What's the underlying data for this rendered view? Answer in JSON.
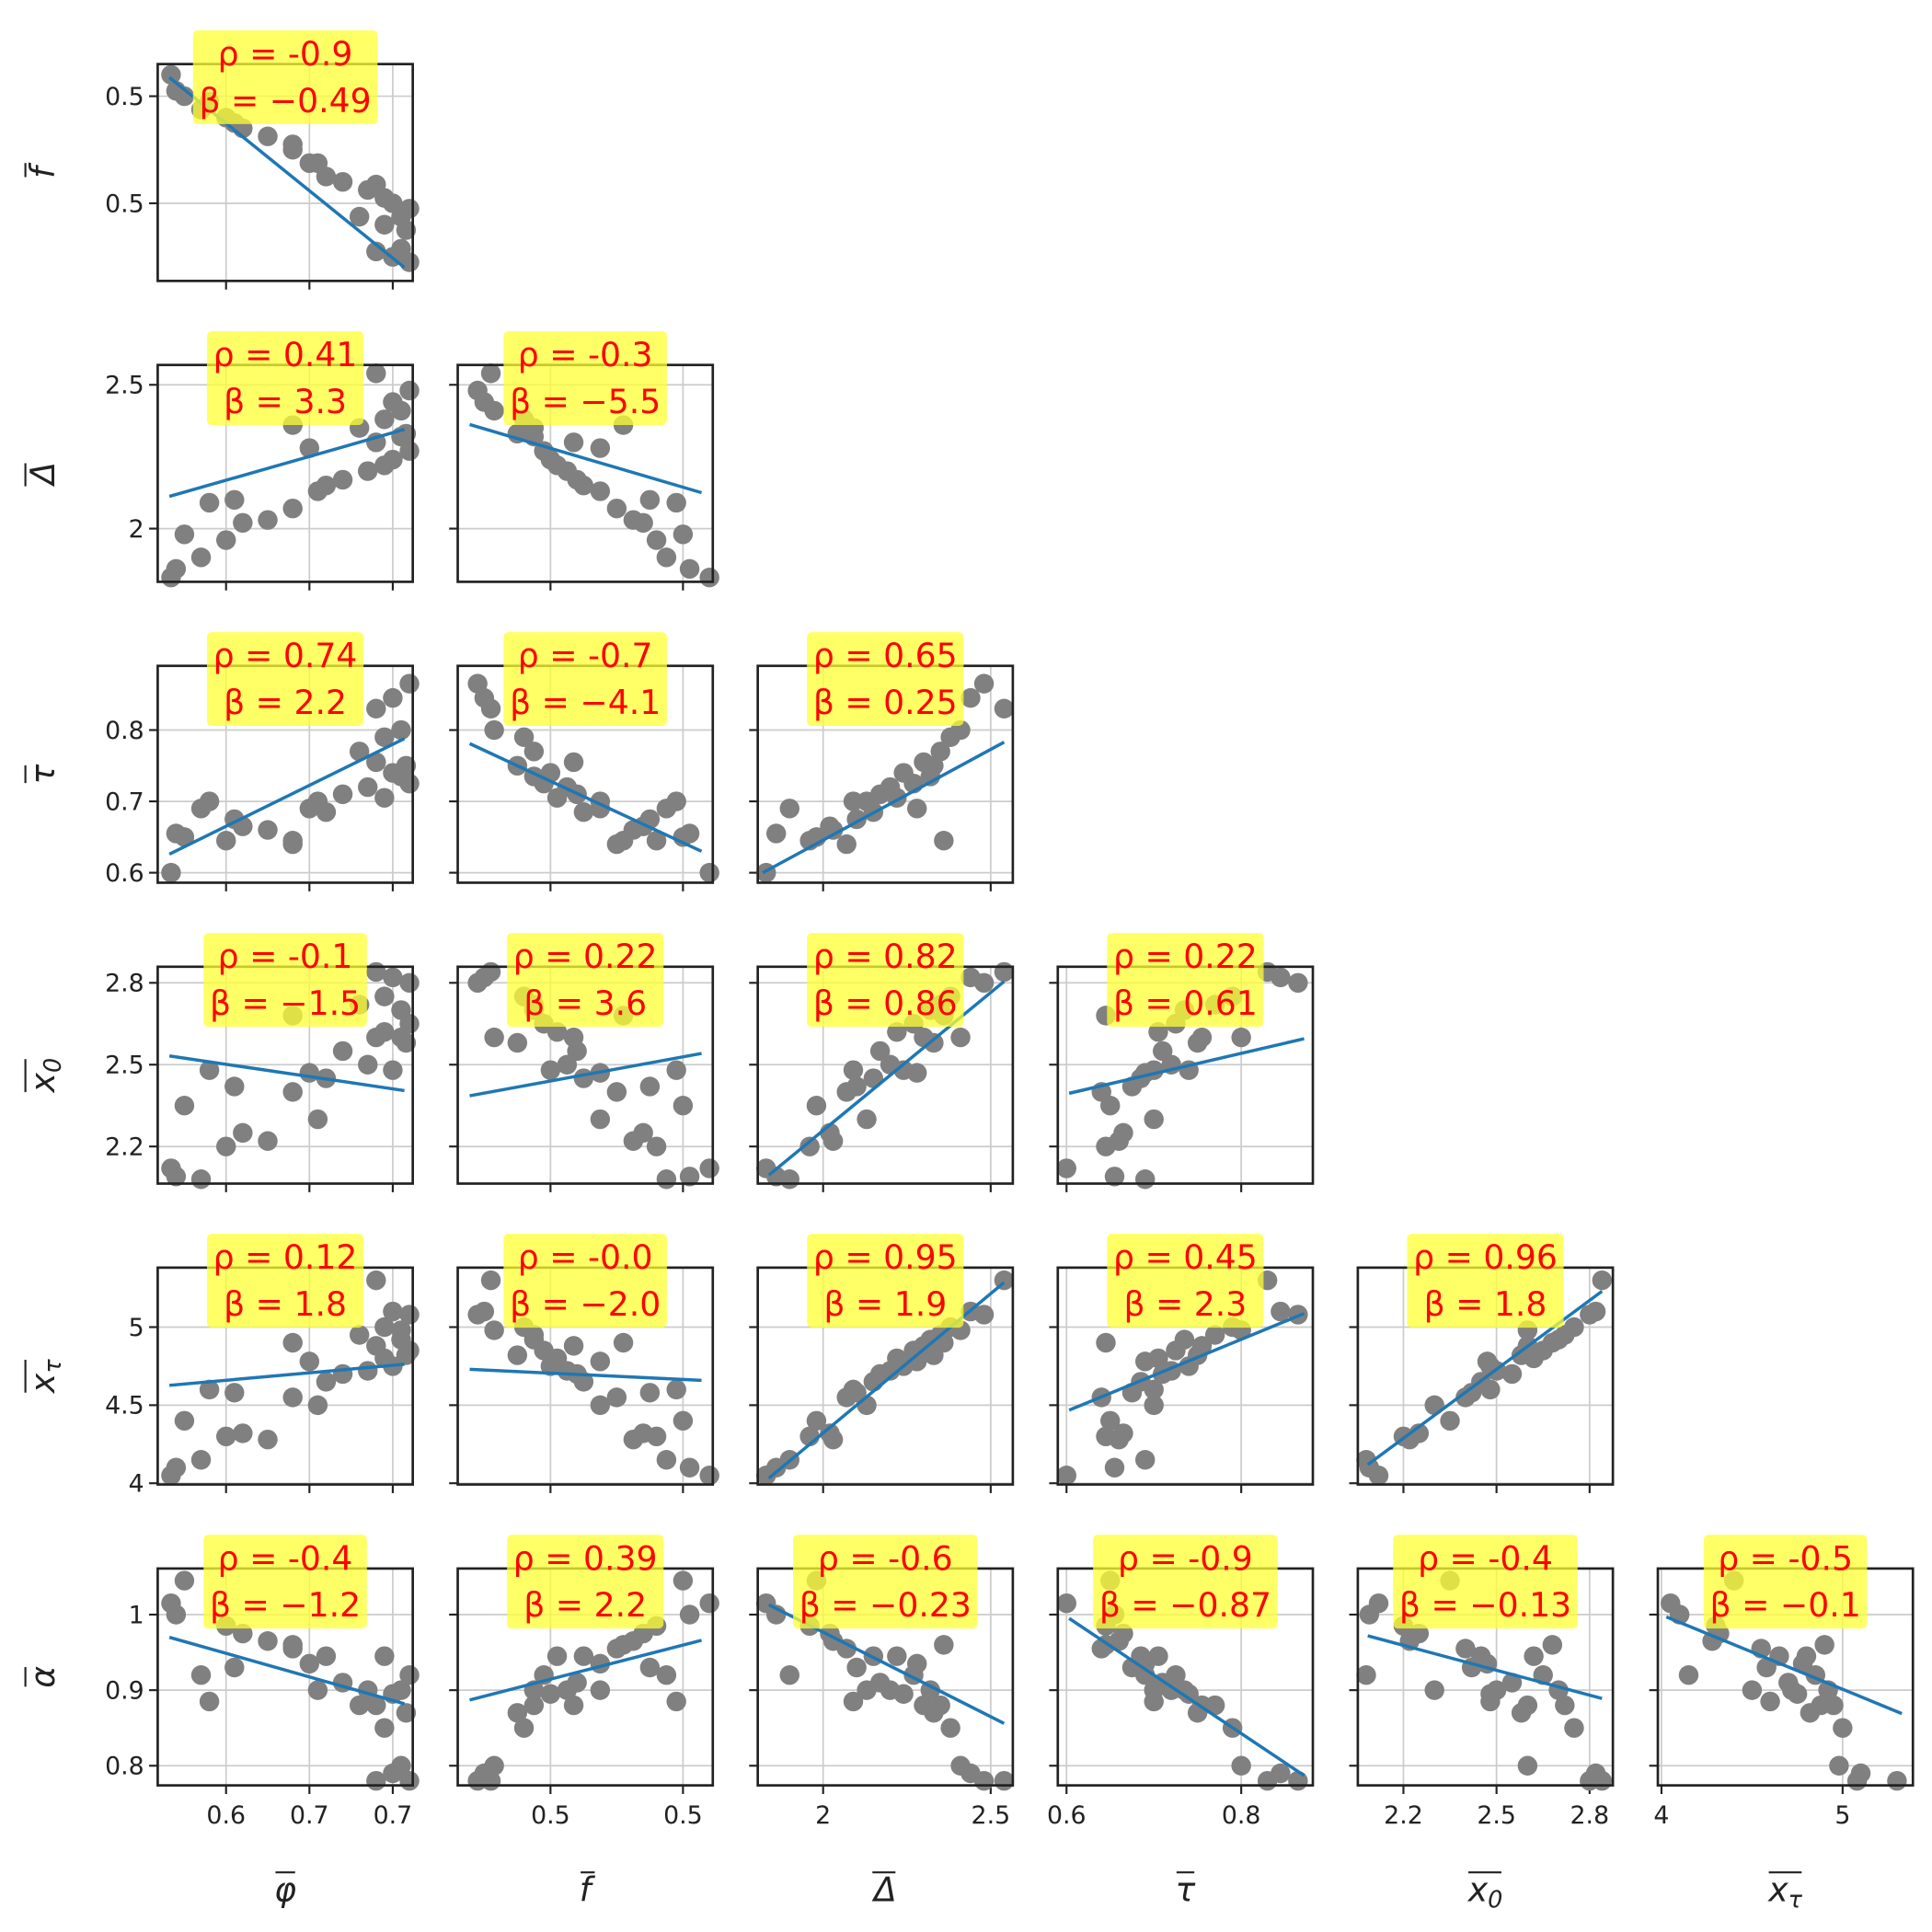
{
  "chart_data": {
    "type": "scatter",
    "grid": true,
    "point_color": "#808080",
    "line_color": "#1f77b4",
    "box_color": "#ffff33",
    "text_color": "#ff0000",
    "variables": [
      {
        "label": "φ",
        "xlim": [
          0.559,
          0.712
        ],
        "xticks": [
          0.6,
          {
            "value": 0.65,
            "label": "0.7"
          },
          0.7
        ],
        "values": [
          0.567,
          0.57,
          0.585,
          0.6,
          0.575,
          0.61,
          0.625,
          0.64,
          0.59,
          0.605,
          0.655,
          0.66,
          0.67,
          0.685,
          0.695,
          0.7,
          0.71,
          0.65,
          0.69,
          0.705,
          0.708,
          0.68,
          0.64,
          0.695,
          0.705,
          0.7,
          0.71,
          0.69
        ]
      },
      {
        "label": "f",
        "xlim": [
          0.452,
          0.529
        ],
        "ylim": [
          0.451,
          0.532
        ],
        "xticks": [
          {
            "value": 0.48,
            "label": "0.5"
          },
          {
            "value": 0.52,
            "label": "0.5"
          }
        ],
        "yticks": [
          {
            "value": 0.52,
            "label": "0.5"
          },
          {
            "value": 0.48,
            "label": "0.5"
          }
        ],
        "values": [
          0.528,
          0.522,
          0.515,
          0.512,
          0.52,
          0.508,
          0.505,
          0.5,
          0.518,
          0.51,
          0.495,
          0.49,
          0.488,
          0.485,
          0.482,
          0.48,
          0.478,
          0.495,
          0.487,
          0.475,
          0.47,
          0.475,
          0.502,
          0.472,
          0.463,
          0.46,
          0.458,
          0.462
        ]
      },
      {
        "label": "Δ",
        "xlim": [
          1.805,
          2.566
        ],
        "ylim": [
          1.815,
          2.569
        ],
        "xticks": [
          2.0,
          2.5
        ],
        "yticks": [
          2.0,
          2.5
        ],
        "values": [
          1.83,
          1.86,
          1.9,
          1.96,
          1.98,
          2.02,
          2.03,
          2.07,
          2.09,
          2.1,
          2.13,
          2.15,
          2.17,
          2.2,
          2.22,
          2.24,
          2.27,
          2.28,
          2.3,
          2.32,
          2.33,
          2.35,
          2.36,
          2.38,
          2.41,
          2.44,
          2.48,
          2.54
        ]
      },
      {
        "label": "τ",
        "xlim": [
          0.59,
          0.882
        ],
        "ylim": [
          0.586,
          0.89
        ],
        "xticks": [
          0.6,
          0.8
        ],
        "yticks": [
          0.6,
          0.7,
          0.8
        ],
        "values": [
          0.6,
          0.655,
          0.69,
          0.645,
          0.65,
          0.665,
          0.66,
          0.64,
          0.7,
          0.675,
          0.7,
          0.685,
          0.71,
          0.72,
          0.705,
          0.74,
          0.725,
          0.69,
          0.755,
          0.735,
          0.75,
          0.77,
          0.645,
          0.79,
          0.8,
          0.845,
          0.865,
          0.83
        ]
      },
      {
        "label": "x",
        "sub": "0",
        "xlim": [
          2.053,
          2.875
        ],
        "ylim": [
          2.064,
          2.859
        ],
        "xticks": [
          2.2,
          2.5,
          2.8
        ],
        "yticks": [
          2.2,
          2.5,
          2.8
        ],
        "values": [
          2.12,
          2.09,
          2.08,
          2.2,
          2.35,
          2.25,
          2.22,
          2.4,
          2.48,
          2.42,
          2.3,
          2.45,
          2.55,
          2.5,
          2.62,
          2.48,
          2.65,
          2.47,
          2.6,
          2.7,
          2.58,
          2.72,
          2.68,
          2.75,
          2.6,
          2.82,
          2.8,
          2.84
        ]
      },
      {
        "label": "x",
        "sub": "τ",
        "xlim": [
          3.98,
          5.388
        ],
        "ylim": [
          3.992,
          5.381
        ],
        "xticks": [
          4.0,
          5.0
        ],
        "yticks": [
          4.0,
          4.5,
          5.0
        ],
        "values": [
          4.05,
          4.1,
          4.15,
          4.3,
          4.4,
          4.32,
          4.28,
          4.55,
          4.6,
          4.58,
          4.5,
          4.65,
          4.7,
          4.72,
          4.8,
          4.75,
          4.85,
          4.78,
          4.88,
          4.92,
          4.82,
          4.95,
          4.9,
          5.0,
          4.98,
          5.1,
          5.08,
          5.3
        ]
      },
      {
        "label": "α",
        "ylim": [
          0.774,
          1.061
        ],
        "yticks": [
          0.8,
          0.9,
          1.0
        ],
        "values": [
          1.015,
          1.0,
          0.92,
          0.985,
          1.045,
          0.975,
          0.965,
          0.955,
          0.885,
          0.93,
          0.9,
          0.945,
          0.91,
          0.9,
          0.945,
          0.895,
          0.92,
          0.935,
          0.88,
          0.9,
          0.87,
          0.88,
          0.96,
          0.85,
          0.8,
          0.79,
          0.78,
          0.78
        ]
      }
    ],
    "rows": [
      [
        {
          "rho": "ρ = -0.9",
          "beta": "β = −0.49",
          "fit": {
            "x": [
              0.566,
              0.707
            ],
            "y": [
              0.527,
              0.456
            ]
          }
        }
      ],
      [
        {
          "rho": "ρ = 0.41",
          "beta": "β = 3.3",
          "fit": {
            "x": [
              0.566,
              0.707
            ],
            "y": [
              2.112,
              2.345
            ]
          }
        },
        {
          "rho": "ρ = -0.3",
          "beta": "β = −5.5",
          "fit": {
            "x": [
              0.4556,
              0.5256
            ],
            "y": [
              2.362,
              2.125
            ]
          }
        }
      ],
      [
        {
          "rho": "ρ = 0.74",
          "beta": "β = 2.2",
          "fit": {
            "x": [
              0.566,
              0.707
            ],
            "y": [
              0.626,
              0.788
            ]
          }
        },
        {
          "rho": "ρ = -0.7",
          "beta": "β = −4.1",
          "fit": {
            "x": [
              0.4556,
              0.5256
            ],
            "y": [
              0.781,
              0.63
            ]
          }
        },
        {
          "rho": "ρ = 0.65",
          "beta": "β = 0.25",
          "fit": {
            "x": [
              1.82,
              2.54
            ],
            "y": [
              0.6,
              0.783
            ]
          }
        }
      ],
      [
        {
          "rho": "ρ = -0.1",
          "beta": "β = −1.5",
          "fit": {
            "x": [
              0.566,
              0.707
            ],
            "y": [
              2.532,
              2.405
            ]
          }
        },
        {
          "rho": "ρ = 0.22",
          "beta": "β = 3.6",
          "fit": {
            "x": [
              0.4556,
              0.5256
            ],
            "y": [
              2.386,
              2.541
            ]
          }
        },
        {
          "rho": "ρ = 0.82",
          "beta": "β = 0.86",
          "fit": {
            "x": [
              1.838,
              2.54
            ],
            "y": [
              2.095,
              2.805
            ]
          }
        },
        {
          "rho": "ρ = 0.22",
          "beta": "β = 0.61",
          "fit": {
            "x": [
              0.603,
              0.872
            ],
            "y": [
              2.395,
              2.595
            ]
          }
        }
      ],
      [
        {
          "rho": "ρ = 0.12",
          "beta": "β = 1.8",
          "fit": {
            "x": [
              0.566,
              0.707
            ],
            "y": [
              4.627,
              4.762
            ]
          }
        },
        {
          "rho": "ρ = -0.0",
          "beta": "β = −2.0",
          "fit": {
            "x": [
              0.4556,
              0.5256
            ],
            "y": [
              4.73,
              4.659
            ]
          }
        },
        {
          "rho": "ρ = 0.95",
          "beta": "β = 1.9",
          "fit": {
            "x": [
              1.838,
              2.54
            ],
            "y": [
              4.032,
              5.286
            ]
          }
        },
        {
          "rho": "ρ = 0.45",
          "beta": "β = 2.3",
          "fit": {
            "x": [
              0.603,
              0.872
            ],
            "y": [
              4.468,
              5.087
            ]
          }
        },
        {
          "rho": "ρ = 0.96",
          "beta": "β = 1.8",
          "fit": {
            "x": [
              2.085,
              2.84
            ],
            "y": [
              4.119,
              5.23
            ]
          }
        }
      ],
      [
        {
          "rho": "ρ = -0.4",
          "beta": "β = −1.2",
          "fit": {
            "x": [
              0.566,
              0.707
            ],
            "y": [
              0.97,
              0.882
            ]
          }
        },
        {
          "rho": "ρ = 0.39",
          "beta": "β = 2.2",
          "fit": {
            "x": [
              0.4556,
              0.5256
            ],
            "y": [
              0.887,
              0.966
            ]
          }
        },
        {
          "rho": "ρ = -0.6",
          "beta": "β = −0.23",
          "fit": {
            "x": [
              1.838,
              2.54
            ],
            "y": [
              1.013,
              0.856
            ]
          }
        },
        {
          "rho": "ρ = -0.9",
          "beta": "β = −0.87",
          "fit": {
            "x": [
              0.603,
              0.872
            ],
            "y": [
              0.995,
              0.787
            ]
          }
        },
        {
          "rho": "ρ = -0.4",
          "beta": "β = −0.13",
          "fit": {
            "x": [
              2.085,
              2.84
            ],
            "y": [
              0.972,
              0.889
            ]
          }
        },
        {
          "rho": "ρ = -0.5",
          "beta": "β = −0.1",
          "fit": {
            "x": [
              4.027,
              5.327
            ],
            "y": [
              0.997,
              0.869
            ]
          }
        }
      ]
    ]
  }
}
